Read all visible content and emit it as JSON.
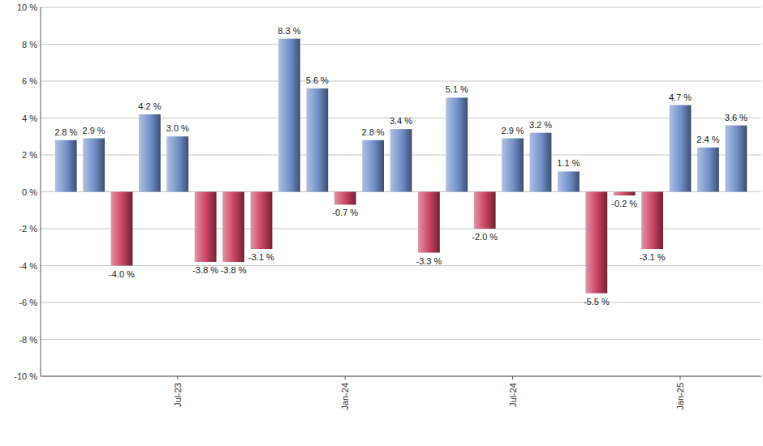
{
  "chart_data": {
    "type": "bar",
    "categories": [
      null,
      null,
      null,
      null,
      "Jul-23",
      null,
      null,
      null,
      null,
      null,
      "Jan-24",
      null,
      null,
      null,
      null,
      null,
      "Jul-24",
      null,
      null,
      null,
      null,
      null,
      "Jan-25",
      null,
      null
    ],
    "values": [
      2.8,
      2.9,
      -4.0,
      4.2,
      3.0,
      -3.8,
      -3.8,
      -3.1,
      8.3,
      5.6,
      -0.7,
      2.8,
      3.4,
      -3.3,
      5.1,
      -2.0,
      2.9,
      3.2,
      1.1,
      -5.5,
      -0.2,
      -3.1,
      4.7,
      2.4,
      3.6
    ],
    "value_labels": [
      "2.8 %",
      "2.9 %",
      "-4.0 %",
      "4.2 %",
      "3.0 %",
      "-3.8 %",
      "-3.8 %",
      "-3.1 %",
      "8.3 %",
      "5.6 %",
      "-0.7 %",
      "2.8 %",
      "3.4 %",
      "-3.3 %",
      "5.1 %",
      "-2.0 %",
      "2.9 %",
      "3.2 %",
      "1.1 %",
      "-5.5 %",
      "-0.2 %",
      "-3.1 %",
      "4.7 %",
      "2.4 %",
      "3.6 %"
    ],
    "colors": [
      "#6f8fc8",
      "#6f8fc8",
      "#c8405e",
      "#6f8fc8",
      "#6f8fc8",
      "#c8405e",
      "#c8405e",
      "#c8405e",
      "#6f8fc8",
      "#6f8fc8",
      "#c8405e",
      "#6f8fc8",
      "#6f8fc8",
      "#c8405e",
      "#6f8fc8",
      "#c8405e",
      "#6f8fc8",
      "#6f8fc8",
      "#6f8fc8",
      "#c8405e",
      "#c8405e",
      "#c8405e",
      "#6f8fc8",
      "#6f8fc8",
      "#6f8fc8"
    ],
    "ylim": [
      -10,
      10
    ],
    "yticks": [
      {
        "value": -10,
        "label": "-10 %"
      },
      {
        "value": -8,
        "label": "-8 %"
      },
      {
        "value": -6,
        "label": "-6 %"
      },
      {
        "value": -4,
        "label": "-4 %"
      },
      {
        "value": -2,
        "label": "-2 %"
      },
      {
        "value": 0,
        "label": "0 %"
      },
      {
        "value": 2,
        "label": "2 %"
      },
      {
        "value": 4,
        "label": "4 %"
      },
      {
        "value": 6,
        "label": "6 %"
      },
      {
        "value": 8,
        "label": "8 %"
      },
      {
        "value": 10,
        "label": "10 %"
      }
    ],
    "grid": true,
    "data_labels": true
  }
}
